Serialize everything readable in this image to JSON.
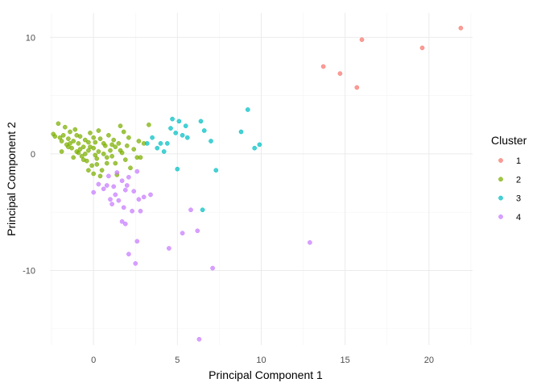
{
  "chart_data": {
    "type": "scatter",
    "title": "",
    "xlabel": "Principal Component 1",
    "ylabel": "Principal Component 2",
    "xlim": [
      -2.6,
      22.6
    ],
    "ylim": [
      -16.4,
      12.1
    ],
    "x_ticks": [
      0,
      5,
      10,
      15,
      20
    ],
    "y_ticks": [
      -10,
      0,
      10
    ],
    "x_tick_labels": [
      "0",
      "5",
      "10",
      "15",
      "20"
    ],
    "y_tick_labels": [
      "-10",
      "0",
      "10"
    ],
    "grid": true,
    "legend": {
      "title": "Cluster",
      "position": "right"
    },
    "series": [
      {
        "name": "1",
        "color": "#F8766D",
        "points": [
          [
            13.7,
            7.5
          ],
          [
            14.7,
            6.9
          ],
          [
            15.7,
            5.7
          ],
          [
            16.0,
            9.8
          ],
          [
            19.6,
            9.1
          ],
          [
            21.9,
            10.8
          ]
        ]
      },
      {
        "name": "2",
        "color": "#7CAE00",
        "points": [
          [
            -2.4,
            1.7
          ],
          [
            -2.3,
            1.5
          ],
          [
            -2.1,
            2.6
          ],
          [
            -2.0,
            1.4
          ],
          [
            -1.9,
            1.1
          ],
          [
            -1.8,
            1.6
          ],
          [
            -1.7,
            2.3
          ],
          [
            -1.6,
            0.8
          ],
          [
            -1.5,
            1.3
          ],
          [
            -1.4,
            1.9
          ],
          [
            -1.3,
            0.5
          ],
          [
            -1.2,
            1.1
          ],
          [
            -1.1,
            2.1
          ],
          [
            -1.0,
            0.2
          ],
          [
            -0.9,
            0.9
          ],
          [
            -0.8,
            1.5
          ],
          [
            -0.7,
            -0.2
          ],
          [
            -0.6,
            0.6
          ],
          [
            -0.5,
            1.2
          ],
          [
            -0.4,
            -0.6
          ],
          [
            -0.3,
            0.3
          ],
          [
            -0.2,
            1.8
          ],
          [
            -0.1,
            -1.0
          ],
          [
            0.0,
            0.5
          ],
          [
            0.1,
            1.0
          ],
          [
            0.2,
            -0.4
          ],
          [
            0.3,
            0.2
          ],
          [
            0.4,
            1.3
          ],
          [
            0.5,
            -1.4
          ],
          [
            0.6,
            0.0
          ],
          [
            0.7,
            0.7
          ],
          [
            0.8,
            -0.8
          ],
          [
            0.9,
            1.6
          ],
          [
            1.0,
            0.3
          ],
          [
            1.1,
            -0.2
          ],
          [
            1.2,
            1.2
          ],
          [
            1.3,
            0.6
          ],
          [
            1.4,
            -1.8
          ],
          [
            1.5,
            0.9
          ],
          [
            1.6,
            2.4
          ],
          [
            1.7,
            0.1
          ],
          [
            1.8,
            1.9
          ],
          [
            1.9,
            -0.5
          ],
          [
            2.0,
            0.7
          ],
          [
            2.1,
            1.4
          ],
          [
            2.2,
            -1.2
          ],
          [
            2.4,
            0.4
          ],
          [
            2.6,
            -0.3
          ],
          [
            2.7,
            1.1
          ],
          [
            2.8,
            -0.3
          ],
          [
            3.0,
            0.9
          ],
          [
            3.3,
            2.5
          ],
          [
            -1.9,
            0.2
          ],
          [
            -1.5,
            0.6
          ],
          [
            -1.2,
            -0.3
          ],
          [
            -0.9,
            0.1
          ],
          [
            -0.6,
            -0.5
          ],
          [
            -0.3,
            -1.4
          ],
          [
            0.0,
            -1.7
          ],
          [
            0.2,
            -0.9
          ],
          [
            0.4,
            -1.9
          ],
          [
            0.0,
            1.4
          ],
          [
            0.3,
            2.0
          ],
          [
            -0.5,
            0.0
          ],
          [
            -0.2,
            0.6
          ],
          [
            0.6,
            0.9
          ],
          [
            -0.8,
            0.4
          ],
          [
            1.1,
            0.8
          ],
          [
            -1.4,
            0.9
          ],
          [
            0.8,
            -0.3
          ],
          [
            1.6,
            0.3
          ],
          [
            0.1,
            -0.1
          ],
          [
            -0.3,
            1.0
          ],
          [
            -1.0,
            1.6
          ],
          [
            1.3,
            -0.8
          ]
        ]
      },
      {
        "name": "3",
        "color": "#00BFC4",
        "points": [
          [
            3.2,
            0.9
          ],
          [
            3.5,
            1.4
          ],
          [
            3.8,
            0.5
          ],
          [
            4.0,
            0.9
          ],
          [
            4.2,
            0.2
          ],
          [
            4.4,
            0.9
          ],
          [
            4.6,
            2.2
          ],
          [
            4.7,
            3.0
          ],
          [
            4.9,
            1.8
          ],
          [
            5.0,
            -1.3
          ],
          [
            5.1,
            2.8
          ],
          [
            5.3,
            1.6
          ],
          [
            5.5,
            2.4
          ],
          [
            5.6,
            1.4
          ],
          [
            6.4,
            2.8
          ],
          [
            6.5,
            -4.8
          ],
          [
            6.6,
            2.0
          ],
          [
            7.0,
            1.1
          ],
          [
            7.3,
            -1.4
          ],
          [
            8.8,
            1.9
          ],
          [
            9.2,
            3.8
          ],
          [
            9.6,
            0.5
          ],
          [
            9.9,
            0.8
          ]
        ]
      },
      {
        "name": "4",
        "color": "#C77CFF",
        "points": [
          [
            0.0,
            -3.3
          ],
          [
            0.3,
            -2.6
          ],
          [
            0.6,
            -3.0
          ],
          [
            0.8,
            -2.7
          ],
          [
            1.0,
            -3.9
          ],
          [
            1.1,
            -4.3
          ],
          [
            1.3,
            -3.5
          ],
          [
            1.5,
            -4.0
          ],
          [
            1.7,
            -5.8
          ],
          [
            1.8,
            -4.6
          ],
          [
            1.9,
            -6.0
          ],
          [
            2.0,
            -2.7
          ],
          [
            2.1,
            -8.6
          ],
          [
            2.3,
            -4.9
          ],
          [
            2.5,
            -9.4
          ],
          [
            2.6,
            -7.5
          ],
          [
            2.7,
            -3.9
          ],
          [
            2.8,
            -4.9
          ],
          [
            3.0,
            -3.7
          ],
          [
            3.4,
            -3.5
          ],
          [
            4.5,
            -8.1
          ],
          [
            5.3,
            -6.8
          ],
          [
            5.8,
            -4.8
          ],
          [
            6.2,
            -6.6
          ],
          [
            6.3,
            -15.9
          ],
          [
            7.1,
            -9.8
          ],
          [
            12.9,
            -7.6
          ],
          [
            1.4,
            -1.6
          ],
          [
            1.7,
            -2.3
          ],
          [
            2.1,
            -2.0
          ],
          [
            2.4,
            -3.2
          ],
          [
            1.2,
            -2.8
          ],
          [
            0.9,
            -1.9
          ],
          [
            2.6,
            -1.5
          ],
          [
            1.9,
            -3.1
          ]
        ]
      }
    ]
  }
}
